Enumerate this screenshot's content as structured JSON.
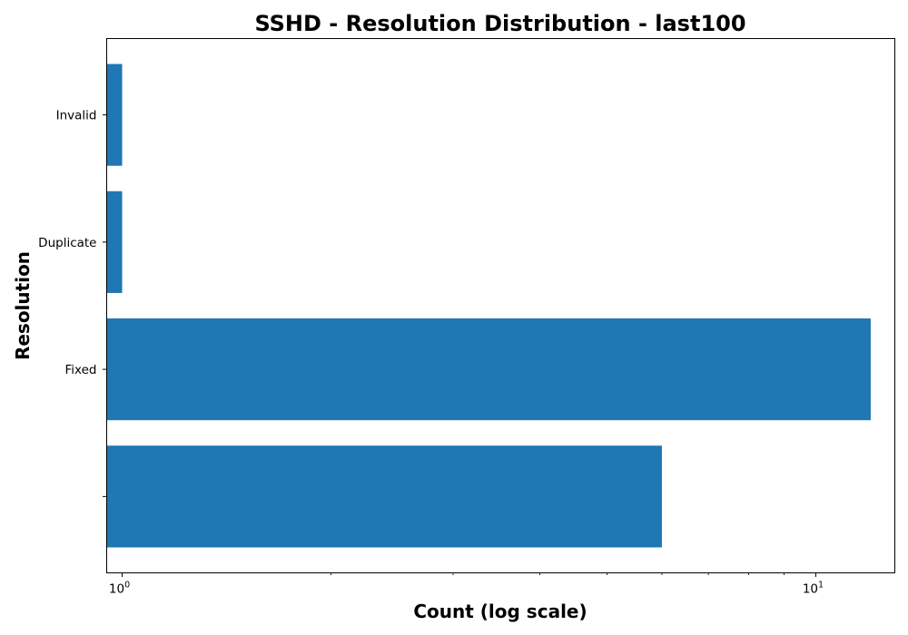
{
  "chart_data": {
    "type": "bar",
    "orientation": "horizontal",
    "title": "SSHD - Resolution Distribution - last100",
    "xlabel": "Count (log scale)",
    "ylabel": "Resolution",
    "x_scale": "log",
    "xlim": [
      0.95,
      13
    ],
    "x_ticks": [
      {
        "value": 1,
        "base": "10",
        "exp": "0"
      },
      {
        "value": 10,
        "base": "10",
        "exp": "1"
      }
    ],
    "categories": [
      "",
      "Fixed",
      "Duplicate",
      "Invalid"
    ],
    "values": [
      6,
      12,
      1,
      1
    ],
    "bar_color": "#1f77b4",
    "grid": false,
    "legend": "none"
  }
}
